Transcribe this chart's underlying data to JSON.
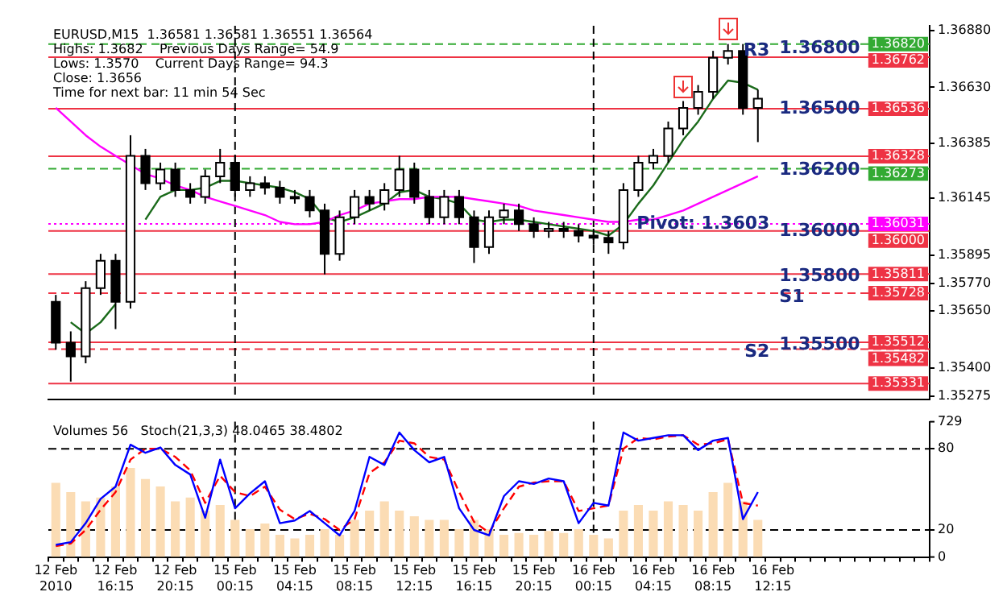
{
  "chart_data": [
    {
      "type": "candlestick",
      "title": "EURUSD,M15  1.36581 1.36581 1.36551 1.36564",
      "annotations": [
        "Highs: 1.3682    Previous Days Range= 54.9",
        "Lows: 1.3570    Current Days Range= 94.3",
        "Close: 1.3656",
        "Time for next bar: 11 min 54 Sec",
        {
          "text": "1.36800",
          "x": "16 Feb 12:15",
          "y": 1.368
        },
        {
          "text": "1.36500",
          "x": "16 Feb 12:15",
          "y": 1.36536
        },
        "1.36200",
        {
          "text": "1.36000",
          "x": "16 Feb 12:15",
          "y": 1.36
        },
        {
          "text": "1.35800",
          "x": "16 Feb 12:15",
          "y": 1.358
        },
        {
          "text": "1.35500",
          "x": "16 Feb 12:15",
          "y": 1.355
        },
        {
          "text": "R3",
          "x": "16 Feb 12:15",
          "y": 1.3679
        },
        {
          "text": "Pivot: 1.3603",
          "x": "16 Feb 12:15",
          "y": 1.3603
        },
        {
          "text": "S1",
          "x": "16 Feb 12:15",
          "y": 1.3571
        },
        {
          "text": "S2",
          "x": "16 Feb 12:15",
          "y": 1.3547
        }
      ],
      "categories": [
        "12 Feb 2010",
        null,
        null,
        null,
        "12 Feb 16:15",
        null,
        null,
        null,
        "12 Feb 20:15",
        null,
        null,
        null,
        "15 Feb 00:15",
        null,
        null,
        null,
        "15 Feb 04:15",
        null,
        null,
        null,
        "15 Feb 08:15",
        null,
        null,
        null,
        "15 Feb 12:15",
        null,
        null,
        null,
        "15 Feb 16:15",
        null,
        null,
        null,
        "15 Feb 20:15",
        null,
        null,
        null,
        "16 Feb 00:15",
        null,
        null,
        null,
        "16 Feb 04:15",
        null,
        null,
        null,
        "16 Feb 08:15",
        null,
        null,
        null,
        "16 Feb 12:15",
        null,
        null,
        null,
        null,
        null,
        null,
        null,
        null,
        null,
        null
      ],
      "ohlc": [
        [
          1.3569,
          1.3572,
          1.3548,
          1.3551
        ],
        [
          1.3551,
          1.3556,
          1.3534,
          1.3545
        ],
        [
          1.3545,
          1.3578,
          1.3542,
          1.3575
        ],
        [
          1.3575,
          1.359,
          1.3572,
          1.3587
        ],
        [
          1.3587,
          1.359,
          1.3557,
          1.3569
        ],
        [
          1.3569,
          1.3642,
          1.3566,
          1.3633
        ],
        [
          1.3633,
          1.3636,
          1.3618,
          1.3621
        ],
        [
          1.3621,
          1.363,
          1.3618,
          1.3627
        ],
        [
          1.3627,
          1.363,
          1.3615,
          1.3618
        ],
        [
          1.3618,
          1.3621,
          1.3612,
          1.3615
        ],
        [
          1.3615,
          1.3627,
          1.3612,
          1.3624
        ],
        [
          1.3624,
          1.3636,
          1.3621,
          1.363
        ],
        [
          1.363,
          1.3633,
          1.3615,
          1.3618
        ],
        [
          1.3618,
          1.3624,
          1.3615,
          1.3621
        ],
        [
          1.3621,
          1.3624,
          1.3616,
          1.3619
        ],
        [
          1.3619,
          1.3622,
          1.3612,
          1.3615
        ],
        [
          1.3615,
          1.3618,
          1.3612,
          1.3615
        ],
        [
          1.3615,
          1.3618,
          1.3606,
          1.3609
        ],
        [
          1.3609,
          1.3612,
          1.3581,
          1.359
        ],
        [
          1.359,
          1.3609,
          1.3587,
          1.3606
        ],
        [
          1.3606,
          1.3618,
          1.3603,
          1.3615
        ],
        [
          1.3615,
          1.3618,
          1.3609,
          1.3612
        ],
        [
          1.3612,
          1.3621,
          1.3609,
          1.3618
        ],
        [
          1.3618,
          1.3633,
          1.3615,
          1.3627
        ],
        [
          1.3627,
          1.363,
          1.3612,
          1.3615
        ],
        [
          1.3615,
          1.3618,
          1.3603,
          1.3606
        ],
        [
          1.3606,
          1.3618,
          1.3603,
          1.3615
        ],
        [
          1.3615,
          1.3618,
          1.3603,
          1.3606
        ],
        [
          1.3606,
          1.3609,
          1.3586,
          1.3593
        ],
        [
          1.3593,
          1.3609,
          1.359,
          1.3606
        ],
        [
          1.3606,
          1.3612,
          1.3603,
          1.3609
        ],
        [
          1.3609,
          1.3612,
          1.36,
          1.3603
        ],
        [
          1.3603,
          1.3606,
          1.3597,
          1.36
        ],
        [
          1.36,
          1.3604,
          1.3597,
          1.3601
        ],
        [
          1.3601,
          1.3604,
          1.3597,
          1.36
        ],
        [
          1.36,
          1.3603,
          1.3595,
          1.3598
        ],
        [
          1.3598,
          1.3601,
          1.3594,
          1.3597
        ],
        [
          1.3597,
          1.36,
          1.359,
          1.3595
        ],
        [
          1.3595,
          1.3621,
          1.3592,
          1.3618
        ],
        [
          1.3618,
          1.3633,
          1.3615,
          1.363
        ],
        [
          1.363,
          1.3636,
          1.3627,
          1.3633
        ],
        [
          1.3633,
          1.3648,
          1.363,
          1.3645
        ],
        [
          1.3645,
          1.3657,
          1.3642,
          1.3654
        ],
        [
          1.3654,
          1.3664,
          1.3651,
          1.3661
        ],
        [
          1.3661,
          1.3679,
          1.3658,
          1.3676
        ],
        [
          1.3676,
          1.3682,
          1.3673,
          1.3679
        ],
        [
          1.3679,
          1.3682,
          1.3651,
          1.3654
        ],
        [
          1.3654,
          1.3662,
          1.3639,
          1.3658
        ],
        null,
        null,
        null,
        null,
        null,
        null,
        null,
        null,
        null,
        null,
        null
      ],
      "series": [
        {
          "type": "line",
          "color": "#ff00ff",
          "values": [
            1.3654,
            1.3648,
            1.3642,
            1.3637,
            1.3633,
            1.3629,
            1.3625,
            1.3623,
            1.362,
            1.3618,
            1.3615,
            1.3613,
            1.3611,
            1.3609,
            1.3607,
            1.3604,
            1.3603,
            1.3603,
            1.3604,
            1.3607,
            1.3609,
            1.3612,
            1.3613,
            1.3614,
            1.3614,
            1.3615,
            1.3615,
            1.3615,
            1.3614,
            1.3613,
            1.3612,
            1.3611,
            1.3609,
            1.3608,
            1.3607,
            1.3606,
            1.3605,
            1.3604,
            1.3604,
            1.3605,
            1.3605,
            1.3607,
            1.3609,
            1.3612,
            1.3615,
            1.3618,
            1.3621,
            1.3624,
            null,
            null,
            null,
            null,
            null,
            null,
            null,
            null,
            null,
            null,
            null
          ]
        },
        {
          "type": "line",
          "color": "#1b6b1b",
          "values": [
            null,
            1.356,
            1.3555,
            1.356,
            1.3568,
            null,
            1.3605,
            1.3615,
            1.3618,
            1.3618,
            1.3619,
            1.3622,
            1.3622,
            1.3621,
            1.362,
            1.3619,
            1.3617,
            1.3614,
            1.3606,
            1.3604,
            1.3606,
            1.3609,
            1.3612,
            1.3617,
            1.3618,
            1.3615,
            1.3614,
            1.3612,
            1.3605,
            1.3604,
            1.3605,
            1.3605,
            1.3604,
            1.3603,
            1.3602,
            1.3601,
            1.36,
            1.3598,
            1.3603,
            1.3612,
            1.362,
            1.363,
            1.364,
            1.3648,
            1.3658,
            1.3666,
            1.3665,
            1.3662,
            null,
            null,
            null,
            null,
            null,
            null,
            null,
            null,
            null,
            null,
            null
          ]
        }
      ],
      "ylim": [
        1.3526,
        1.369
      ],
      "yticks": [
        {
          "value": 1.3688,
          "label": "1.36880"
        },
        {
          "value": 1.3663,
          "label": "1.36630"
        },
        {
          "value": 1.36385,
          "label": "1.36385"
        },
        {
          "value": 1.36145,
          "label": "1.36145"
        },
        {
          "value": 1.35895,
          "label": "1.35895"
        },
        {
          "value": 1.3577,
          "label": "1.35770"
        },
        {
          "value": 1.3565,
          "label": "1.35650"
        },
        {
          "value": 1.354,
          "label": "1.35400"
        },
        {
          "value": 1.35275,
          "label": "1.35275"
        }
      ],
      "ref_lines": [
        {
          "axis": "y",
          "value": 1.3682,
          "label": "1.36820",
          "color": "#33aa33",
          "line_style": "dashed"
        },
        {
          "axis": "y",
          "value": 1.36762,
          "label": "1.36762",
          "color": "#ee3344",
          "line_style": "solid"
        },
        {
          "axis": "y",
          "value": 1.36536,
          "label": "1.36536",
          "color": "#ee3344",
          "line_style": "solid"
        },
        {
          "axis": "y",
          "value": 1.36328,
          "label": "1.36328",
          "color": "#ee3344",
          "line_style": "solid"
        },
        {
          "axis": "y",
          "value": 1.36273,
          "label": "1.36273",
          "color": "#33aa33",
          "line_style": "dashed"
        },
        {
          "axis": "y",
          "value": 1.36031,
          "label": "1.36031",
          "color": "#ff00ff",
          "line_style": "dotted"
        },
        {
          "axis": "y",
          "value": 1.36,
          "label": "1.36000",
          "color": "#ee3344",
          "line_style": "solid"
        },
        {
          "axis": "y",
          "value": 1.35811,
          "label": "1.35811",
          "color": "#ee3344",
          "line_style": "solid"
        },
        {
          "axis": "y",
          "value": 1.35728,
          "label": "1.35728",
          "color": "#ee3344",
          "line_style": "dashed"
        },
        {
          "axis": "y",
          "value": 1.35512,
          "label": "1.35512",
          "color": "#ee3344",
          "line_style": "solid"
        },
        {
          "axis": "y",
          "value": 1.35482,
          "label": "1.35482",
          "color": "#ee3344",
          "line_style": "dashed"
        },
        {
          "axis": "y",
          "value": 1.35331,
          "label": "1.35331",
          "color": "#ee3344",
          "line_style": "solid"
        },
        {
          "axis": "x",
          "value": "15 Feb 00:15",
          "color": "#000000",
          "line_style": "dashed"
        },
        {
          "axis": "x",
          "value": "16 Feb 00:15",
          "color": "#000000",
          "line_style": "dashed"
        }
      ],
      "tick_labels": "y",
      "grid": false,
      "legend": false
    },
    {
      "type": "bar",
      "title": "Volumes 56   Stoch(21,3,3) 48.0465 38.4802",
      "categories": [
        "12 Feb 2010",
        null,
        null,
        null,
        "12 Feb 16:15",
        null,
        null,
        null,
        "12 Feb 20:15",
        null,
        null,
        null,
        "15 Feb 00:15",
        null,
        null,
        null,
        "15 Feb 04:15",
        null,
        null,
        null,
        "15 Feb 08:15",
        null,
        null,
        null,
        "15 Feb 12:15",
        null,
        null,
        null,
        "15 Feb 16:15",
        null,
        null,
        null,
        "15 Feb 20:15",
        null,
        null,
        null,
        "16 Feb 00:15",
        null,
        null,
        null,
        "16 Feb 04:15",
        null,
        null,
        null,
        "16 Feb 08:15",
        null,
        null,
        null,
        "16 Feb 12:15",
        null,
        null,
        null,
        null,
        null,
        null,
        null,
        null,
        null,
        null
      ],
      "series": [
        {
          "type": "bar",
          "axis": "y2",
          "color": "#fbdcb4",
          "values": [
            400,
            350,
            300,
            320,
            380,
            480,
            420,
            380,
            300,
            320,
            250,
            280,
            200,
            150,
            180,
            120,
            100,
            120,
            150,
            120,
            200,
            250,
            300,
            250,
            220,
            200,
            200,
            150,
            200,
            150,
            120,
            130,
            120,
            140,
            130,
            150,
            120,
            100,
            250,
            280,
            250,
            300,
            280,
            250,
            350,
            400,
            300,
            200,
            null,
            null,
            null,
            null,
            null,
            null,
            null,
            null,
            null,
            null,
            null
          ]
        },
        {
          "type": "line",
          "color": "#0000ff",
          "line_style": "solid",
          "values": [
            9,
            11,
            25,
            43,
            52,
            83,
            77,
            81,
            68,
            61,
            29,
            72,
            36,
            47,
            56,
            25,
            27,
            34,
            25,
            16,
            34,
            74,
            68,
            92,
            79,
            70,
            74,
            36,
            20,
            16,
            45,
            56,
            54,
            58,
            56,
            25,
            40,
            38,
            92,
            86,
            88,
            90,
            90,
            79,
            86,
            88,
            28,
            48,
            null,
            null,
            null,
            null,
            null,
            null,
            null,
            null,
            null,
            null,
            null
          ]
        },
        {
          "type": "line",
          "color": "#ff0000",
          "line_style": "dashed",
          "values": [
            8,
            10,
            20,
            35,
            48,
            72,
            80,
            80,
            74,
            64,
            40,
            60,
            48,
            45,
            52,
            35,
            28,
            32,
            28,
            20,
            28,
            62,
            70,
            86,
            84,
            74,
            72,
            48,
            26,
            18,
            36,
            52,
            55,
            56,
            56,
            34,
            36,
            38,
            80,
            88,
            87,
            89,
            90,
            83,
            84,
            87,
            40,
            38,
            null,
            null,
            null,
            null,
            null,
            null,
            null,
            null,
            null,
            null,
            null
          ]
        }
      ],
      "ylim": [
        0,
        100
      ],
      "yticks": [
        20,
        80
      ],
      "y2lim": [
        0,
        729
      ],
      "y2ticks": [
        0,
        729
      ],
      "ref_lines": [
        {
          "axis": "y",
          "value": 20,
          "color": "#000000",
          "line_style": "dashed"
        },
        {
          "axis": "y",
          "value": 80,
          "color": "#000000",
          "line_style": "dashed"
        },
        {
          "axis": "x",
          "value": "15 Feb 00:15",
          "color": "#000000",
          "line_style": "dashed"
        },
        {
          "axis": "x",
          "value": "16 Feb 00:15",
          "color": "#000000",
          "line_style": "dashed"
        }
      ],
      "grid": false,
      "legend": false
    }
  ]
}
